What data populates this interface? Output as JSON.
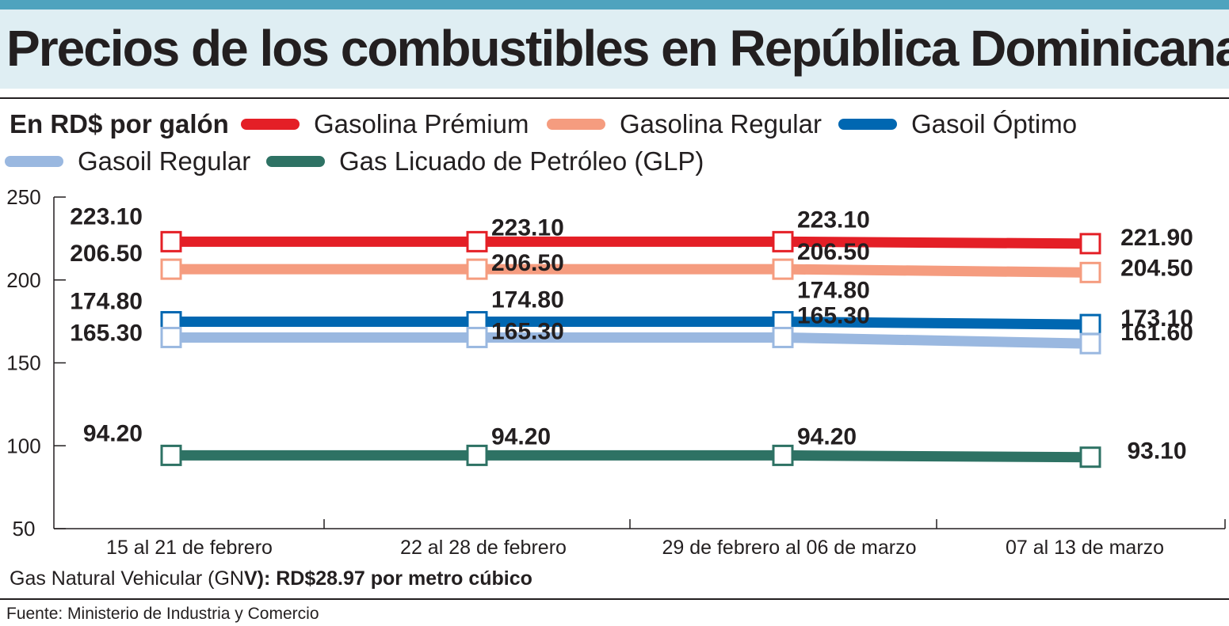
{
  "title": "Precios de los combustibles en República Dominicana",
  "unit_label": "En RD$ por galón",
  "gnv_note": {
    "prefix": "Gas Natural Vehicular (GN",
    "bold": "V): RD$28.97 por metro cúbico"
  },
  "source": "Fuente: Ministerio de Industria y Comercio",
  "chart_data": {
    "type": "line",
    "categories": [
      "15 al 21 de febrero",
      "22 al 28 de febrero",
      "29 de febrero al 06 de marzo",
      "07 al 13 de marzo"
    ],
    "ylim": [
      50,
      250
    ],
    "yticks": [
      50,
      100,
      150,
      200,
      250
    ],
    "grid": false,
    "legend_placement": "top",
    "series": [
      {
        "name": "Gasolina Prémium",
        "color": "#e41f26",
        "values": [
          223.1,
          223.1,
          223.1,
          221.9
        ],
        "labels": [
          "223.10",
          "223.10",
          "223.10",
          "221.90"
        ]
      },
      {
        "name": "Gasolina Regular",
        "color": "#f59c7f",
        "values": [
          206.5,
          206.5,
          206.5,
          204.5
        ],
        "labels": [
          "206.50",
          "206.50",
          "206.50",
          "204.50"
        ]
      },
      {
        "name": "Gasoil Óptimo",
        "color": "#0067b1",
        "values": [
          174.8,
          174.8,
          174.8,
          173.1
        ],
        "labels": [
          "174.80",
          "174.80",
          "174.80",
          "173.10"
        ]
      },
      {
        "name": "Gasoil Regular",
        "color": "#9ab8e0",
        "values": [
          165.3,
          165.3,
          165.3,
          161.6
        ],
        "labels": [
          "165.30",
          "165.30",
          "165.30",
          "161.60"
        ]
      },
      {
        "name": "Gas Licuado de Petróleo (GLP)",
        "color": "#2e7264",
        "values": [
          94.2,
          94.2,
          94.2,
          93.1
        ],
        "labels": [
          "94.20",
          "94.20",
          "94.20",
          "93.10"
        ]
      }
    ]
  }
}
